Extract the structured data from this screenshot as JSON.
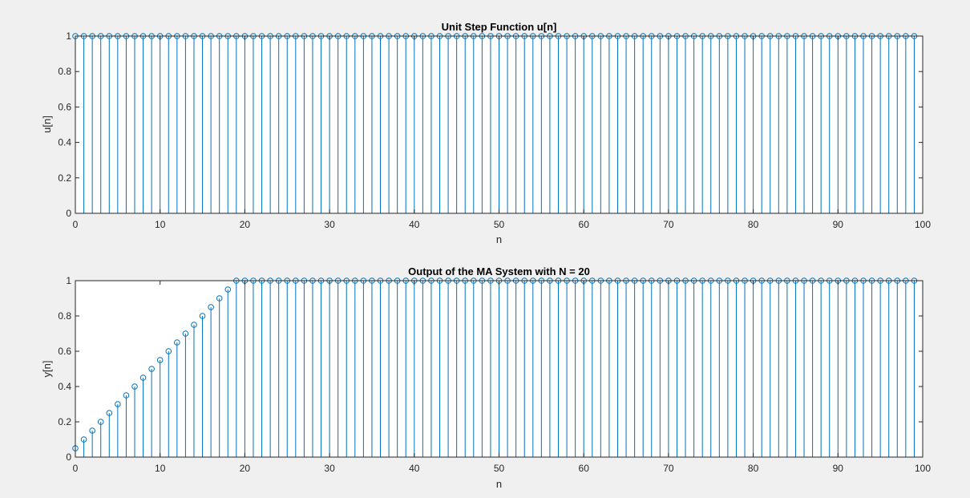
{
  "colors": {
    "background": "#f0f0f0",
    "axes_background": "#ffffff",
    "stem": "#0072bd",
    "axis": "#262626"
  },
  "chart_data": [
    {
      "type": "stem",
      "title": "Unit Step Function u[n]",
      "xlabel": "n",
      "ylabel": "u[n]",
      "xlim": [
        0,
        100
      ],
      "ylim": [
        0,
        1
      ],
      "xticks": [
        "0",
        "10",
        "20",
        "30",
        "40",
        "50",
        "60",
        "70",
        "80",
        "90",
        "100"
      ],
      "yticks": [
        "0",
        "0.2",
        "0.4",
        "0.6",
        "0.8",
        "1"
      ],
      "grid": false,
      "x": [
        0,
        1,
        2,
        3,
        4,
        5,
        6,
        7,
        8,
        9,
        10,
        11,
        12,
        13,
        14,
        15,
        16,
        17,
        18,
        19,
        20,
        21,
        22,
        23,
        24,
        25,
        26,
        27,
        28,
        29,
        30,
        31,
        32,
        33,
        34,
        35,
        36,
        37,
        38,
        39,
        40,
        41,
        42,
        43,
        44,
        45,
        46,
        47,
        48,
        49,
        50,
        51,
        52,
        53,
        54,
        55,
        56,
        57,
        58,
        59,
        60,
        61,
        62,
        63,
        64,
        65,
        66,
        67,
        68,
        69,
        70,
        71,
        72,
        73,
        74,
        75,
        76,
        77,
        78,
        79,
        80,
        81,
        82,
        83,
        84,
        85,
        86,
        87,
        88,
        89,
        90,
        91,
        92,
        93,
        94,
        95,
        96,
        97,
        98,
        99
      ],
      "values": [
        1,
        1,
        1,
        1,
        1,
        1,
        1,
        1,
        1,
        1,
        1,
        1,
        1,
        1,
        1,
        1,
        1,
        1,
        1,
        1,
        1,
        1,
        1,
        1,
        1,
        1,
        1,
        1,
        1,
        1,
        1,
        1,
        1,
        1,
        1,
        1,
        1,
        1,
        1,
        1,
        1,
        1,
        1,
        1,
        1,
        1,
        1,
        1,
        1,
        1,
        1,
        1,
        1,
        1,
        1,
        1,
        1,
        1,
        1,
        1,
        1,
        1,
        1,
        1,
        1,
        1,
        1,
        1,
        1,
        1,
        1,
        1,
        1,
        1,
        1,
        1,
        1,
        1,
        1,
        1,
        1,
        1,
        1,
        1,
        1,
        1,
        1,
        1,
        1,
        1,
        1,
        1,
        1,
        1,
        1,
        1,
        1,
        1,
        1,
        1
      ]
    },
    {
      "type": "stem",
      "title": "Output of the MA System with N = 20",
      "xlabel": "n",
      "ylabel": "y[n]",
      "xlim": [
        0,
        100
      ],
      "ylim": [
        0,
        1
      ],
      "xticks": [
        "0",
        "10",
        "20",
        "30",
        "40",
        "50",
        "60",
        "70",
        "80",
        "90",
        "100"
      ],
      "yticks": [
        "0",
        "0.2",
        "0.4",
        "0.6",
        "0.8",
        "1"
      ],
      "grid": false,
      "x": [
        0,
        1,
        2,
        3,
        4,
        5,
        6,
        7,
        8,
        9,
        10,
        11,
        12,
        13,
        14,
        15,
        16,
        17,
        18,
        19,
        20,
        21,
        22,
        23,
        24,
        25,
        26,
        27,
        28,
        29,
        30,
        31,
        32,
        33,
        34,
        35,
        36,
        37,
        38,
        39,
        40,
        41,
        42,
        43,
        44,
        45,
        46,
        47,
        48,
        49,
        50,
        51,
        52,
        53,
        54,
        55,
        56,
        57,
        58,
        59,
        60,
        61,
        62,
        63,
        64,
        65,
        66,
        67,
        68,
        69,
        70,
        71,
        72,
        73,
        74,
        75,
        76,
        77,
        78,
        79,
        80,
        81,
        82,
        83,
        84,
        85,
        86,
        87,
        88,
        89,
        90,
        91,
        92,
        93,
        94,
        95,
        96,
        97,
        98,
        99
      ],
      "values": [
        0.05,
        0.1,
        0.15,
        0.2,
        0.25,
        0.3,
        0.35,
        0.4,
        0.45,
        0.5,
        0.55,
        0.6,
        0.65,
        0.7,
        0.75,
        0.8,
        0.85,
        0.9,
        0.95,
        1,
        1,
        1,
        1,
        1,
        1,
        1,
        1,
        1,
        1,
        1,
        1,
        1,
        1,
        1,
        1,
        1,
        1,
        1,
        1,
        1,
        1,
        1,
        1,
        1,
        1,
        1,
        1,
        1,
        1,
        1,
        1,
        1,
        1,
        1,
        1,
        1,
        1,
        1,
        1,
        1,
        1,
        1,
        1,
        1,
        1,
        1,
        1,
        1,
        1,
        1,
        1,
        1,
        1,
        1,
        1,
        1,
        1,
        1,
        1,
        1,
        1,
        1,
        1,
        1,
        1,
        1,
        1,
        1,
        1,
        1,
        1,
        1,
        1,
        1,
        1,
        1,
        1,
        1,
        1,
        1
      ]
    }
  ]
}
